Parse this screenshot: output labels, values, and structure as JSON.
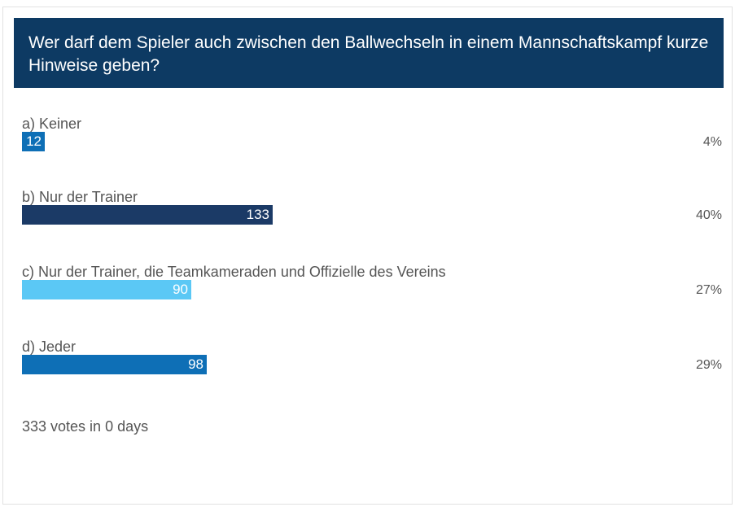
{
  "poll": {
    "question": "Wer darf dem Spieler auch zwischen den Ballwechseln in einem Mannschaftskampf kurze Hinweise geben?",
    "footer": "333 votes in 0 days",
    "header_color": "#0d3a63"
  },
  "chart_data": {
    "type": "bar",
    "orientation": "horizontal",
    "total_votes": 333,
    "categories": [
      "a) Keiner",
      "b) Nur der Trainer",
      "c) Nur der Trainer, die Teamkameraden und Offizielle des Vereins",
      "d) Jeder"
    ],
    "values": [
      12,
      133,
      90,
      98
    ],
    "percent_labels": [
      "4%",
      "40%",
      "27%",
      "29%"
    ],
    "value_labels": [
      "12",
      "133",
      "90",
      "98"
    ],
    "colors": [
      "#0e6fb6",
      "#1b3a66",
      "#5bc8f5",
      "#0e6fb6"
    ]
  }
}
